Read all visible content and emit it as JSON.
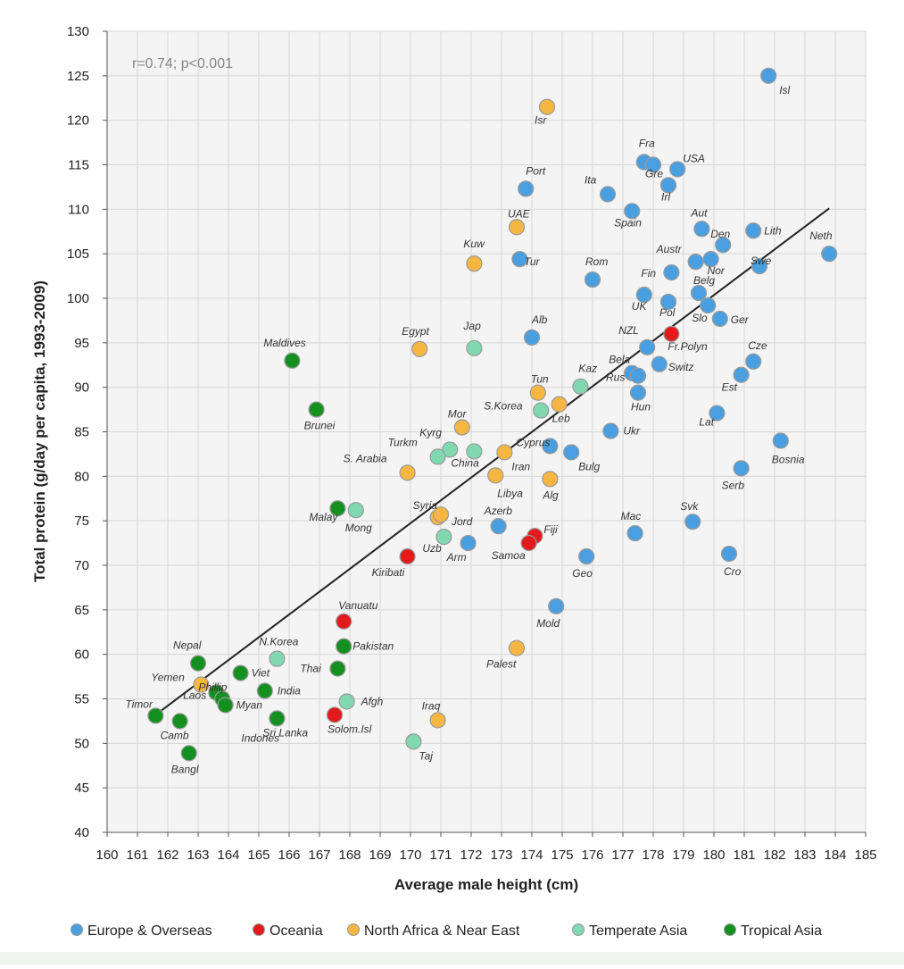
{
  "chart_data": {
    "type": "scatter",
    "title": "",
    "xlabel": "Average male height (cm)",
    "ylabel": "Total protein (g/day per capita, 1993-2009)",
    "xlim": [
      160,
      185
    ],
    "ylim": [
      40,
      130
    ],
    "x_ticks": [
      160,
      161,
      162,
      163,
      164,
      165,
      166,
      167,
      168,
      169,
      170,
      171,
      172,
      173,
      174,
      175,
      176,
      177,
      178,
      179,
      180,
      181,
      182,
      183,
      184,
      185
    ],
    "y_ticks": [
      40,
      45,
      50,
      55,
      60,
      65,
      70,
      75,
      80,
      85,
      90,
      95,
      100,
      105,
      110,
      115,
      120,
      125,
      130
    ],
    "grid": true,
    "annotation": "r=0.74; p<0.001",
    "trendline": {
      "x": [
        161.6,
        183.8
      ],
      "y": [
        53.2,
        110.1
      ]
    },
    "legend_position": "bottom",
    "colors": {
      "Europe & Overseas": "#4a9fe0",
      "Oceania": "#e31a1c",
      "North Africa & Near East": "#f5b642",
      "Temperate Asia": "#7fd8b0",
      "Tropical Asia": "#13901f"
    },
    "series": [
      {
        "name": "Europe & Overseas",
        "points": [
          {
            "label": "Isl",
            "x": 181.8,
            "y": 125
          },
          {
            "label": "Fra",
            "x": 177.7,
            "y": 115.3
          },
          {
            "label": "",
            "x": 178.0,
            "y": 115.0
          },
          {
            "label": "USA",
            "x": 178.8,
            "y": 114.5
          },
          {
            "label": "Gre",
            "x": 178.5,
            "y": 112.7
          },
          {
            "label": "Irl",
            "x": 178.5,
            "y": 112.7
          },
          {
            "label": "Port",
            "x": 173.8,
            "y": 112.3
          },
          {
            "label": "Ita",
            "x": 176.5,
            "y": 111.7
          },
          {
            "label": "Spain",
            "x": 177.3,
            "y": 109.8
          },
          {
            "label": "Aut",
            "x": 179.6,
            "y": 107.8
          },
          {
            "label": "Den",
            "x": 180.3,
            "y": 106.0
          },
          {
            "label": "Lith",
            "x": 181.3,
            "y": 107.6
          },
          {
            "label": "Neth",
            "x": 183.8,
            "y": 105.0
          },
          {
            "label": "Tur",
            "x": 173.6,
            "y": 104.4
          },
          {
            "label": "Rom",
            "x": 176.0,
            "y": 102.1
          },
          {
            "label": "Austr",
            "x": 179.4,
            "y": 104.1
          },
          {
            "label": "Nor",
            "x": 179.9,
            "y": 104.4
          },
          {
            "label": "Swe",
            "x": 181.5,
            "y": 103.6
          },
          {
            "label": "Fin",
            "x": 178.6,
            "y": 102.9
          },
          {
            "label": "UK",
            "x": 177.7,
            "y": 100.4
          },
          {
            "label": "Pol",
            "x": 178.5,
            "y": 99.6
          },
          {
            "label": "Belg",
            "x": 179.5,
            "y": 100.6
          },
          {
            "label": "Slo",
            "x": 179.8,
            "y": 99.2
          },
          {
            "label": "Ger",
            "x": 180.2,
            "y": 97.7
          },
          {
            "label": "Alb",
            "x": 174.0,
            "y": 95.6
          },
          {
            "label": "NZL",
            "x": 177.8,
            "y": 94.5
          },
          {
            "label": "Cze",
            "x": 181.3,
            "y": 92.9
          },
          {
            "label": "Switz",
            "x": 178.2,
            "y": 92.6
          },
          {
            "label": "Bela",
            "x": 177.3,
            "y": 91.6
          },
          {
            "label": "Rus",
            "x": 177.5,
            "y": 91.3
          },
          {
            "label": "Est",
            "x": 180.9,
            "y": 91.4
          },
          {
            "label": "Hun",
            "x": 177.5,
            "y": 89.4
          },
          {
            "label": "Lat",
            "x": 180.1,
            "y": 87.1
          },
          {
            "label": "Ukr",
            "x": 176.6,
            "y": 85.1
          },
          {
            "label": "Bosnia",
            "x": 182.2,
            "y": 84.0
          },
          {
            "label": "Cyprus",
            "x": 174.6,
            "y": 83.4
          },
          {
            "label": "Bulg",
            "x": 175.3,
            "y": 82.7
          },
          {
            "label": "Serb",
            "x": 180.9,
            "y": 80.9
          },
          {
            "label": "Svk",
            "x": 179.3,
            "y": 74.9
          },
          {
            "label": "Azerb",
            "x": 172.9,
            "y": 74.4
          },
          {
            "label": "Mac",
            "x": 177.4,
            "y": 73.6
          },
          {
            "label": "Arm",
            "x": 171.9,
            "y": 72.5
          },
          {
            "label": "Geo",
            "x": 175.8,
            "y": 71.0
          },
          {
            "label": "Cro",
            "x": 180.5,
            "y": 71.3
          },
          {
            "label": "Mold",
            "x": 174.8,
            "y": 65.4
          }
        ]
      },
      {
        "name": "Oceania",
        "points": [
          {
            "label": "Fr.Polyn",
            "x": 178.6,
            "y": 96.0
          },
          {
            "label": "Fiji",
            "x": 174.1,
            "y": 73.3
          },
          {
            "label": "Samoa",
            "x": 173.9,
            "y": 72.5
          },
          {
            "label": "Kiribati",
            "x": 169.9,
            "y": 71.0
          },
          {
            "label": "Vanuatu",
            "x": 167.8,
            "y": 63.7
          },
          {
            "label": "Solom.Isl",
            "x": 167.5,
            "y": 53.2
          }
        ]
      },
      {
        "name": "North Africa & Near East",
        "points": [
          {
            "label": "Isr",
            "x": 174.5,
            "y": 121.5
          },
          {
            "label": "UAE",
            "x": 173.5,
            "y": 108.0
          },
          {
            "label": "Kuw",
            "x": 172.1,
            "y": 103.9
          },
          {
            "label": "Egypt",
            "x": 170.3,
            "y": 94.3
          },
          {
            "label": "Tun",
            "x": 174.2,
            "y": 89.4
          },
          {
            "label": "Leb",
            "x": 174.9,
            "y": 88.1
          },
          {
            "label": "Mor",
            "x": 171.7,
            "y": 85.5
          },
          {
            "label": "Iran",
            "x": 173.1,
            "y": 82.7
          },
          {
            "label": "S. Arabia",
            "x": 169.9,
            "y": 80.4
          },
          {
            "label": "Libya",
            "x": 172.8,
            "y": 80.1
          },
          {
            "label": "Alg",
            "x": 174.6,
            "y": 79.7
          },
          {
            "label": "Syria",
            "x": 170.9,
            "y": 75.4
          },
          {
            "label": "Jord",
            "x": 171.0,
            "y": 75.7
          },
          {
            "label": "Palest",
            "x": 173.5,
            "y": 60.7
          },
          {
            "label": "Yemen",
            "x": 163.1,
            "y": 56.6
          },
          {
            "label": "Iraq",
            "x": 170.9,
            "y": 52.6
          }
        ]
      },
      {
        "name": "Temperate Asia",
        "points": [
          {
            "label": "Jap",
            "x": 172.1,
            "y": 94.4
          },
          {
            "label": "Kaz",
            "x": 175.6,
            "y": 90.1
          },
          {
            "label": "S.Korea",
            "x": 174.3,
            "y": 87.4
          },
          {
            "label": "Kyrg",
            "x": 171.3,
            "y": 83.0
          },
          {
            "label": "Turkm",
            "x": 170.9,
            "y": 82.2
          },
          {
            "label": "China",
            "x": 172.1,
            "y": 82.8
          },
          {
            "label": "Mong",
            "x": 168.2,
            "y": 76.2
          },
          {
            "label": "Uzb",
            "x": 171.1,
            "y": 73.2
          },
          {
            "label": "N.Korea",
            "x": 165.6,
            "y": 59.5
          },
          {
            "label": "Afgh",
            "x": 167.9,
            "y": 54.7
          },
          {
            "label": "Taj",
            "x": 170.1,
            "y": 50.2
          }
        ]
      },
      {
        "name": "Tropical Asia",
        "points": [
          {
            "label": "Maldives",
            "x": 166.1,
            "y": 93.0
          },
          {
            "label": "Brunei",
            "x": 166.9,
            "y": 87.5
          },
          {
            "label": "Malay",
            "x": 167.6,
            "y": 76.4
          },
          {
            "label": "Pakistan",
            "x": 167.8,
            "y": 60.9
          },
          {
            "label": "Thai",
            "x": 167.6,
            "y": 58.4
          },
          {
            "label": "Nepal",
            "x": 163.0,
            "y": 59.0
          },
          {
            "label": "Viet",
            "x": 164.4,
            "y": 57.9
          },
          {
            "label": "India",
            "x": 165.2,
            "y": 55.9
          },
          {
            "label": "Phillip",
            "x": 163.6,
            "y": 55.7
          },
          {
            "label": "Laos",
            "x": 163.8,
            "y": 55.0
          },
          {
            "label": "Myan",
            "x": 163.9,
            "y": 54.3
          },
          {
            "label": "Timor",
            "x": 161.6,
            "y": 53.1
          },
          {
            "label": "Camb",
            "x": 162.4,
            "y": 52.5
          },
          {
            "label": "Indones",
            "x": 165.6,
            "y": 52.8
          },
          {
            "label": "Sri Lanka",
            "x": 165.6,
            "y": 52.8
          },
          {
            "label": "Bangl",
            "x": 162.7,
            "y": 48.9
          }
        ]
      }
    ]
  }
}
